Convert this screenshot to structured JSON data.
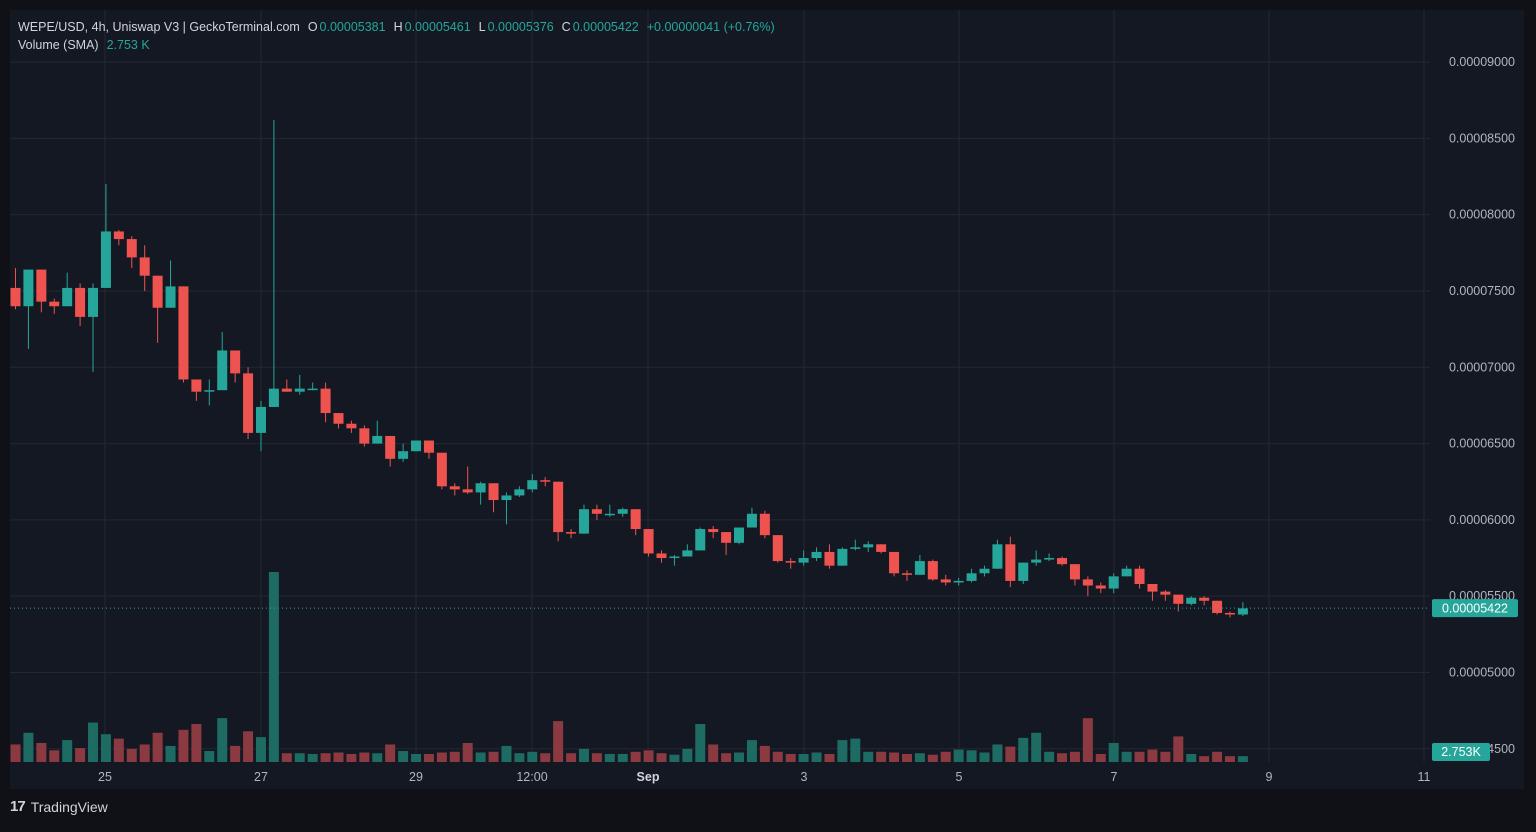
{
  "header": {
    "symbol_line": "WEPE/USD, 4h, Uniswap V3 | GeckoTerminal.com",
    "ohlc": [
      {
        "label": "O",
        "value": "0.00005381"
      },
      {
        "label": "H",
        "value": "0.00005461"
      },
      {
        "label": "L",
        "value": "0.00005376"
      },
      {
        "label": "C",
        "value": "0.00005422"
      }
    ],
    "change": "+0.00000041 (+0.76%)",
    "volume_label": "Volume (SMA)",
    "volume_value": "2.753 K"
  },
  "brand": {
    "name": "TradingView",
    "logo_icon": "tradingview-logo-icon"
  },
  "price_badge": "0.00005422",
  "volume_badge": "2.753K",
  "colors": {
    "background": "#141822",
    "up": "#26a69a",
    "down": "#ef5350",
    "vol_up": "#1e6b63",
    "vol_down": "#8a3a40",
    "grid": "#232732",
    "text": "#b2b5be"
  },
  "chart_data": {
    "type": "candlestick",
    "title": "WEPE/USD, 4h, Uniswap V3 | GeckoTerminal.com",
    "ylim": [
      4.23e-05,
      9.21e-05
    ],
    "y_ticks": [
      "0.00009000",
      "0.00008500",
      "0.00008000",
      "0.00007500",
      "0.00007000",
      "0.00006500",
      "0.00006000",
      "0.00005500",
      "0.00005000",
      "0.00004500"
    ],
    "x_ticks": [
      "25",
      "27",
      "29",
      "12:00",
      "Sep",
      "3",
      "5",
      "7",
      "9",
      "11"
    ],
    "grid": true,
    "last_price": 5.422e-05,
    "candles": [
      [
        7.52,
        7.4,
        7.65,
        7.38,
        120
      ],
      [
        7.4,
        7.64,
        7.64,
        7.12,
        200
      ],
      [
        7.64,
        7.43,
        7.64,
        7.36,
        130
      ],
      [
        7.43,
        7.4,
        7.45,
        7.35,
        80
      ],
      [
        7.4,
        7.52,
        7.62,
        7.4,
        150
      ],
      [
        7.52,
        7.33,
        7.55,
        7.27,
        95
      ],
      [
        7.33,
        7.52,
        7.55,
        6.97,
        270
      ],
      [
        7.52,
        7.89,
        8.2,
        7.52,
        190
      ],
      [
        7.89,
        7.84,
        7.9,
        7.8,
        160
      ],
      [
        7.84,
        7.72,
        7.86,
        7.65,
        90
      ],
      [
        7.72,
        7.6,
        7.8,
        7.5,
        120
      ],
      [
        7.6,
        7.39,
        7.6,
        7.16,
        200
      ],
      [
        7.39,
        7.53,
        7.7,
        7.39,
        110
      ],
      [
        7.53,
        6.92,
        7.53,
        6.9,
        220
      ],
      [
        6.92,
        6.84,
        6.92,
        6.78,
        260
      ],
      [
        6.84,
        6.85,
        6.92,
        6.75,
        75
      ],
      [
        6.85,
        7.11,
        7.23,
        6.85,
        300
      ],
      [
        7.11,
        6.96,
        7.11,
        6.9,
        110
      ],
      [
        6.96,
        6.57,
        7.0,
        6.53,
        210
      ],
      [
        6.57,
        6.74,
        6.78,
        6.45,
        170
      ],
      [
        6.74,
        6.86,
        8.62,
        6.74,
        1300
      ],
      [
        6.86,
        6.84,
        6.92,
        6.84,
        60
      ],
      [
        6.84,
        6.86,
        6.95,
        6.82,
        60
      ],
      [
        6.86,
        6.86,
        6.9,
        6.85,
        55
      ],
      [
        6.86,
        6.7,
        6.9,
        6.64,
        60
      ],
      [
        6.7,
        6.63,
        6.7,
        6.6,
        65
      ],
      [
        6.63,
        6.6,
        6.65,
        6.57,
        55
      ],
      [
        6.6,
        6.5,
        6.62,
        6.48,
        65
      ],
      [
        6.5,
        6.55,
        6.65,
        6.5,
        60
      ],
      [
        6.55,
        6.4,
        6.55,
        6.35,
        120
      ],
      [
        6.4,
        6.45,
        6.5,
        6.38,
        75
      ],
      [
        6.45,
        6.52,
        6.52,
        6.45,
        55
      ],
      [
        6.52,
        6.44,
        6.52,
        6.4,
        55
      ],
      [
        6.44,
        6.22,
        6.44,
        6.2,
        65
      ],
      [
        6.22,
        6.2,
        6.24,
        6.16,
        70
      ],
      [
        6.2,
        6.18,
        6.35,
        6.17,
        130
      ],
      [
        6.18,
        6.24,
        6.25,
        6.1,
        65
      ],
      [
        6.24,
        6.13,
        6.24,
        6.05,
        70
      ],
      [
        6.13,
        6.16,
        6.18,
        5.97,
        110
      ],
      [
        6.16,
        6.2,
        6.22,
        6.15,
        60
      ],
      [
        6.2,
        6.26,
        6.3,
        6.18,
        70
      ],
      [
        6.26,
        6.25,
        6.28,
        6.22,
        60
      ],
      [
        6.25,
        5.92,
        6.25,
        5.86,
        280
      ],
      [
        5.92,
        5.91,
        5.94,
        5.88,
        60
      ],
      [
        5.91,
        6.07,
        6.1,
        5.91,
        90
      ],
      [
        6.07,
        6.04,
        6.1,
        6.0,
        60
      ],
      [
        6.04,
        6.04,
        6.1,
        6.02,
        55
      ],
      [
        6.04,
        6.07,
        6.08,
        6.02,
        55
      ],
      [
        6.07,
        5.94,
        6.07,
        5.9,
        70
      ],
      [
        5.94,
        5.78,
        5.94,
        5.76,
        80
      ],
      [
        5.78,
        5.75,
        5.8,
        5.72,
        60
      ],
      [
        5.75,
        5.76,
        5.77,
        5.7,
        50
      ],
      [
        5.76,
        5.8,
        5.84,
        5.76,
        90
      ],
      [
        5.8,
        5.94,
        5.95,
        5.8,
        260
      ],
      [
        5.94,
        5.92,
        5.96,
        5.88,
        120
      ],
      [
        5.92,
        5.85,
        5.92,
        5.77,
        60
      ],
      [
        5.85,
        5.95,
        5.95,
        5.84,
        65
      ],
      [
        5.95,
        6.04,
        6.08,
        5.95,
        150
      ],
      [
        6.04,
        5.9,
        6.06,
        5.88,
        110
      ],
      [
        5.9,
        5.73,
        5.9,
        5.72,
        70
      ],
      [
        5.73,
        5.72,
        5.75,
        5.68,
        55
      ],
      [
        5.72,
        5.75,
        5.8,
        5.7,
        55
      ],
      [
        5.75,
        5.79,
        5.82,
        5.73,
        65
      ],
      [
        5.79,
        5.7,
        5.84,
        5.68,
        55
      ],
      [
        5.7,
        5.81,
        5.82,
        5.7,
        150
      ],
      [
        5.81,
        5.82,
        5.87,
        5.8,
        160
      ],
      [
        5.82,
        5.84,
        5.86,
        5.79,
        70
      ],
      [
        5.84,
        5.79,
        5.84,
        5.78,
        70
      ],
      [
        5.79,
        5.65,
        5.79,
        5.63,
        65
      ],
      [
        5.65,
        5.64,
        5.67,
        5.6,
        55
      ],
      [
        5.64,
        5.73,
        5.77,
        5.64,
        60
      ],
      [
        5.73,
        5.61,
        5.74,
        5.6,
        50
      ],
      [
        5.61,
        5.59,
        5.64,
        5.57,
        70
      ],
      [
        5.59,
        5.6,
        5.62,
        5.57,
        85
      ],
      [
        5.6,
        5.65,
        5.68,
        5.59,
        80
      ],
      [
        5.65,
        5.68,
        5.7,
        5.63,
        65
      ],
      [
        5.68,
        5.84,
        5.87,
        5.68,
        120
      ],
      [
        5.84,
        5.6,
        5.89,
        5.56,
        105
      ],
      [
        5.6,
        5.72,
        5.72,
        5.58,
        165
      ],
      [
        5.72,
        5.74,
        5.8,
        5.7,
        200
      ],
      [
        5.74,
        5.75,
        5.78,
        5.73,
        70
      ],
      [
        5.75,
        5.71,
        5.76,
        5.7,
        60
      ],
      [
        5.71,
        5.61,
        5.71,
        5.57,
        70
      ],
      [
        5.61,
        5.57,
        5.63,
        5.5,
        300
      ],
      [
        5.57,
        5.55,
        5.59,
        5.52,
        55
      ],
      [
        5.55,
        5.63,
        5.65,
        5.52,
        130
      ],
      [
        5.63,
        5.68,
        5.7,
        5.63,
        70
      ],
      [
        5.68,
        5.58,
        5.7,
        5.55,
        70
      ],
      [
        5.58,
        5.53,
        5.58,
        5.47,
        85
      ],
      [
        5.53,
        5.51,
        5.54,
        5.47,
        70
      ],
      [
        5.51,
        5.45,
        5.51,
        5.4,
        175
      ],
      [
        5.45,
        5.49,
        5.5,
        5.44,
        55
      ],
      [
        5.49,
        5.47,
        5.5,
        5.44,
        40
      ],
      [
        5.47,
        5.39,
        5.47,
        5.38,
        70
      ],
      [
        5.39,
        5.38,
        5.4,
        5.36,
        40
      ],
      [
        5.38,
        5.42,
        5.46,
        5.37,
        40
      ]
    ]
  }
}
